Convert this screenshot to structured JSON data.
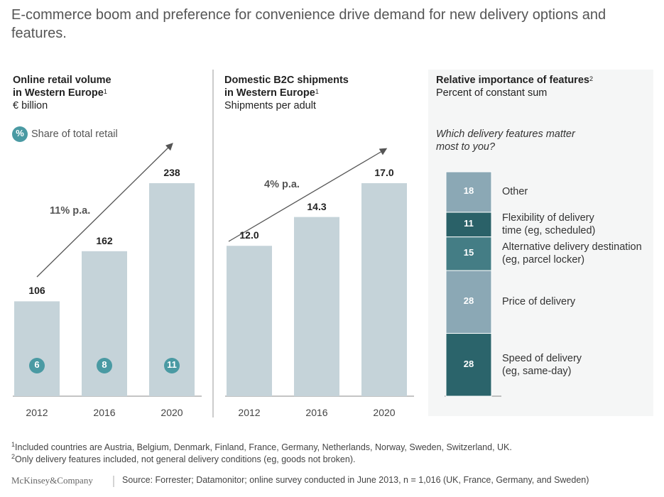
{
  "header": {
    "title": "E-commerce boom and preference for convenience drive demand for new delivery options and features."
  },
  "chart_data": [
    {
      "type": "bar",
      "title": "Online retail volume\nin Western Europe",
      "title_note": "1",
      "subtitle": "€ billion",
      "categories": [
        "2012",
        "2016",
        "2020"
      ],
      "values": [
        106,
        162,
        238
      ],
      "color": "#c5d3d9",
      "share": {
        "name": "Share of total retail",
        "symbol": "%",
        "color": "#4a9aa3",
        "values": [
          6,
          8,
          11
        ]
      },
      "annotation": "11% p.a."
    },
    {
      "type": "bar",
      "title": "Domestic B2C shipments\nin Western Europe",
      "title_note": "1",
      "subtitle": "Shipments per adult",
      "categories": [
        "2012",
        "2016",
        "2020"
      ],
      "values": [
        12.0,
        14.3,
        17.0
      ],
      "value_labels": [
        "12.0",
        "14.3",
        "17.0"
      ],
      "color": "#c5d3d9",
      "annotation": "4% p.a."
    },
    {
      "type": "stacked_bar",
      "title": "Relative importance of features",
      "title_note": "2",
      "subtitle": "Percent of constant sum",
      "question": "Which delivery features matter\nmost to you?",
      "series": [
        {
          "name": "Speed of delivery\n(eg, same-day)",
          "color": "#2b646b",
          "values": [
            28
          ]
        },
        {
          "name": "Price of delivery",
          "color": "#8ba8b5",
          "values": [
            28
          ]
        },
        {
          "name": "Alternative delivery destination\n(eg, parcel locker)",
          "color": "#447d85",
          "values": [
            15
          ]
        },
        {
          "name": "Flexibility of delivery\ntime (eg, scheduled)",
          "color": "#2a6168",
          "values": [
            11
          ]
        },
        {
          "name": "Other",
          "color": "#8ba8b5",
          "values": [
            18
          ]
        }
      ]
    }
  ],
  "footnotes": [
    {
      "mark": "1",
      "text": "Included countries are Austria, Belgium, Denmark, Finland, France, Germany, Netherlands, Norway, Sweden, Switzerland, UK."
    },
    {
      "mark": "2",
      "text": "Only delivery features included, not general delivery conditions (eg, goods not broken)."
    }
  ],
  "footer": {
    "logo": "McKinsey&Company",
    "source": "Source: Forrester; Datamonitor; online survey conducted in June 2013, n = 1,016 (UK, France, Germany, and Sweden)"
  }
}
